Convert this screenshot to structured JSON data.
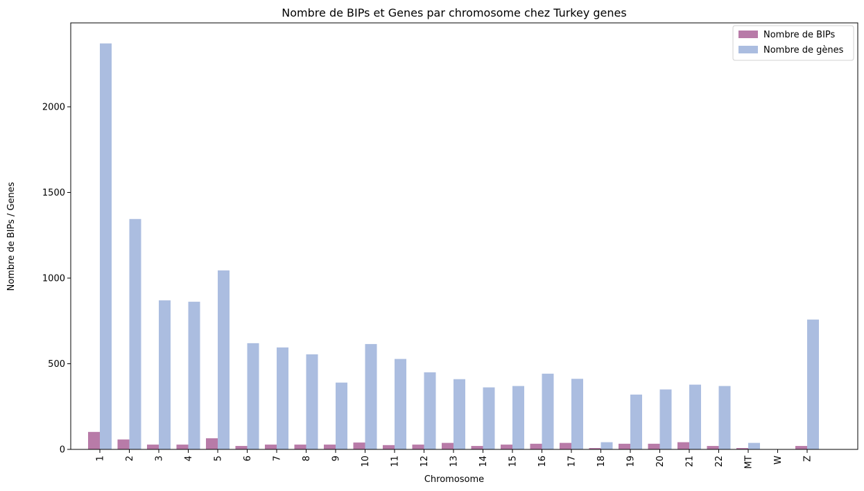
{
  "chart_data": {
    "type": "bar",
    "title": "Nombre de BIPs et Genes par chromosome chez Turkey genes",
    "xlabel": "Chromosome",
    "ylabel": "Nombre de BIPs / Genes",
    "categories": [
      "1",
      "2",
      "3",
      "4",
      "5",
      "6",
      "7",
      "8",
      "9",
      "10",
      "11",
      "12",
      "13",
      "14",
      "15",
      "16",
      "17",
      "18",
      "19",
      "20",
      "21",
      "22",
      "MT",
      "W",
      "Z"
    ],
    "series": [
      {
        "name": "Nombre de BIPs",
        "color": "#b87ba8",
        "values": [
          102,
          58,
          28,
          28,
          65,
          20,
          28,
          28,
          28,
          40,
          25,
          28,
          38,
          20,
          28,
          33,
          38,
          8,
          33,
          33,
          42,
          20,
          8,
          2,
          20
        ]
      },
      {
        "name": "Nombre de gènes",
        "color": "#abbde0",
        "values": [
          2370,
          1345,
          870,
          862,
          1045,
          620,
          595,
          555,
          390,
          615,
          528,
          450,
          410,
          362,
          370,
          442,
          412,
          42,
          320,
          350,
          378,
          370,
          38,
          0,
          758
        ]
      }
    ],
    "ylim": [
      0,
      2500
    ],
    "yticks": [
      0,
      500,
      1000,
      1500,
      2000
    ],
    "grid": false,
    "legend_position": "top-right"
  }
}
